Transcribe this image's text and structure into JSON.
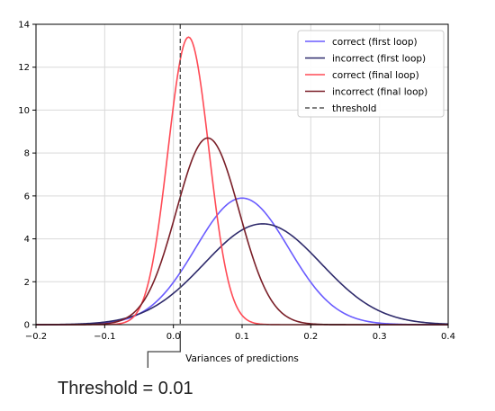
{
  "chart_data": {
    "type": "line",
    "title": "",
    "xlabel": "Variances of predictions",
    "ylabel": "",
    "xlim": [
      -0.2,
      0.4
    ],
    "ylim": [
      0,
      14
    ],
    "xticks": [
      "−0.2",
      "−0.1",
      "0.0",
      "0.1",
      "0.2",
      "0.3",
      "0.4"
    ],
    "xtick_values": [
      -0.2,
      -0.1,
      0.0,
      0.1,
      0.2,
      0.3,
      0.4
    ],
    "yticks": [
      "0",
      "2",
      "4",
      "6",
      "8",
      "10",
      "12",
      "14"
    ],
    "ytick_values": [
      0,
      2,
      4,
      6,
      8,
      10,
      12,
      14
    ],
    "grid": true,
    "legend_position": "top-right",
    "series": [
      {
        "name": "correct (first loop)",
        "color": "#6a5cff",
        "shape": "gaussian",
        "peak_x": 0.1,
        "peak_y": 5.9,
        "sigma": 0.0676
      },
      {
        "name": "incorrect (first loop)",
        "color": "#2e2a6b",
        "shape": "gaussian",
        "peak_x": 0.13,
        "peak_y": 4.7,
        "sigma": 0.085
      },
      {
        "name": "correct (final loop)",
        "color": "#ff4a55",
        "shape": "gaussian",
        "peak_x": 0.022,
        "peak_y": 13.4,
        "sigma": 0.0298
      },
      {
        "name": "incorrect (final loop)",
        "color": "#7a1f28",
        "shape": "gaussian",
        "peak_x": 0.05,
        "peak_y": 8.7,
        "sigma": 0.0459
      }
    ],
    "threshold": {
      "name": "threshold",
      "x": 0.01,
      "color": "#555555",
      "style": "dashed"
    },
    "annotation": {
      "text": "Threshold = 0.01",
      "x": 0.01
    }
  }
}
